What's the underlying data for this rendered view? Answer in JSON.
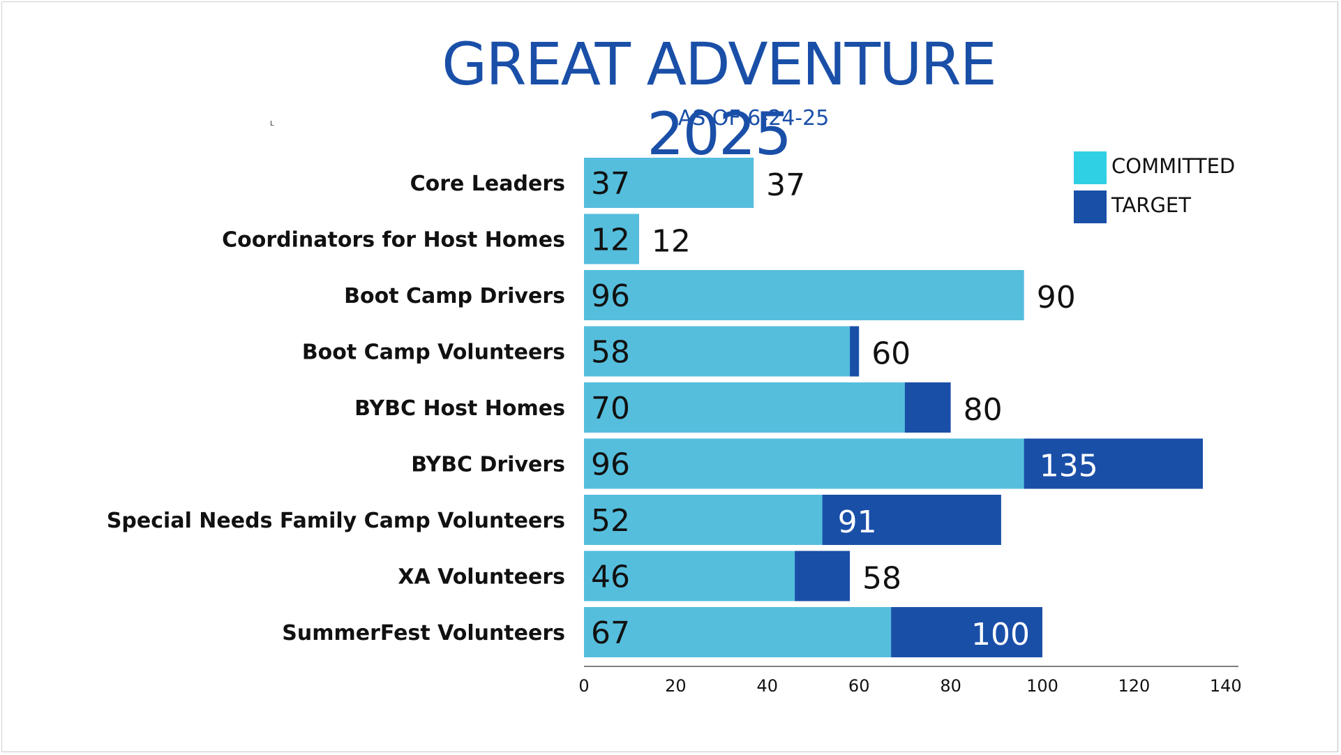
{
  "page": {
    "title": "GREAT ADVENTURE 2025",
    "subtitle": "AS OF 6-24-25",
    "tiny_mark": "L"
  },
  "colors": {
    "committed": "#55bedd",
    "target": "#1a4fa8",
    "legend_committed": "#2fd0e4",
    "title": "#1a4fa8"
  },
  "legend": {
    "items": [
      {
        "label": "COMMITTED",
        "color_key": "legend_committed"
      },
      {
        "label": "TARGET",
        "color_key": "target"
      }
    ]
  },
  "chart_data": {
    "type": "bar",
    "orientation": "horizontal",
    "stacked": false,
    "title": "GREAT ADVENTURE 2025",
    "subtitle": "AS OF 6-24-25",
    "xlim": [
      0,
      140
    ],
    "xticks": [
      0,
      20,
      40,
      60,
      80,
      100,
      120,
      140
    ],
    "grid": false,
    "legend_position": "top-right",
    "categories": [
      "Core Leaders",
      "Coordinators for Host Homes",
      "Boot Camp Drivers",
      "Boot Camp Volunteers",
      "BYBC Host Homes",
      "BYBC Drivers",
      "Special Needs Family Camp Volunteers",
      "XA Volunteers",
      "SummerFest Volunteers"
    ],
    "series": [
      {
        "name": "COMMITTED",
        "values": [
          37,
          12,
          96,
          58,
          70,
          96,
          52,
          46,
          67
        ]
      },
      {
        "name": "TARGET",
        "values": [
          37,
          12,
          90,
          60,
          80,
          135,
          91,
          58,
          100
        ]
      }
    ]
  }
}
